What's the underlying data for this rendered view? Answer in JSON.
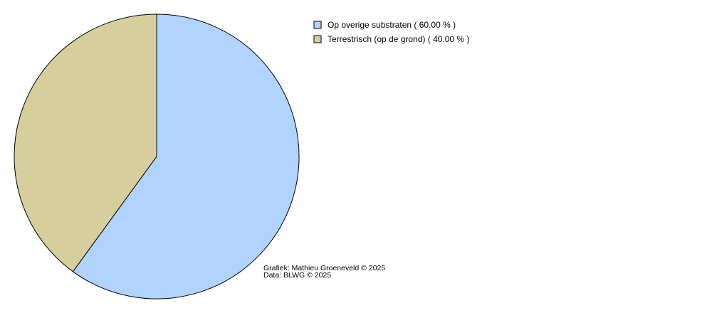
{
  "chart_data": {
    "type": "pie",
    "categories": [
      "Op overige substraten",
      "Terrestrisch (op de grond)"
    ],
    "values": [
      60,
      40
    ],
    "value_labels": [
      "( 60.00 % )",
      "( 40.00 % )"
    ],
    "colors": [
      "#b0d4ff",
      "#d6cf9c"
    ],
    "annotations": [
      "Grafiek: Mathieu Groeneveld © 2025",
      "Data: BLWG © 2025"
    ]
  }
}
